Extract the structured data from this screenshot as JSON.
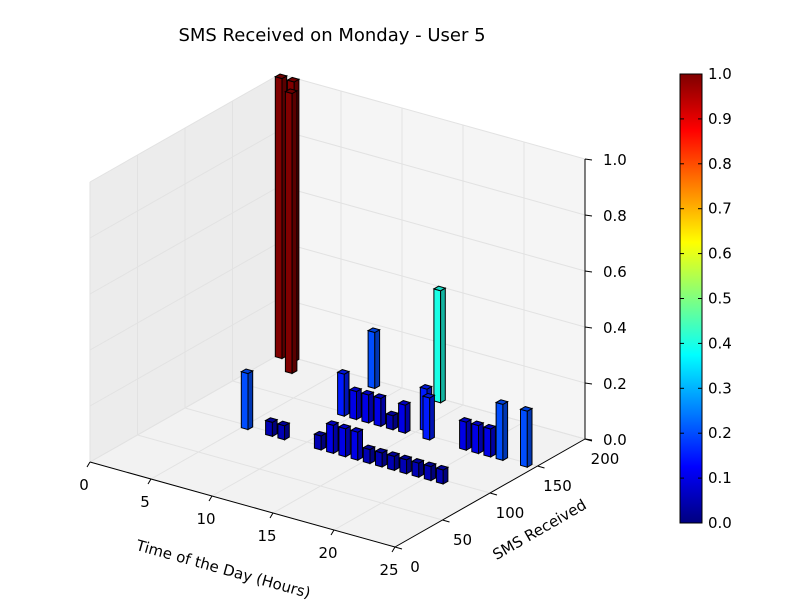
{
  "chart_data": {
    "type": "bar3d",
    "title": "SMS Received on Monday - User 5",
    "xlabel": "Time of the Day (Hours)",
    "ylabel": "SMS Received",
    "zlabel": "",
    "xlim": [
      0,
      25
    ],
    "ylim": [
      0,
      200
    ],
    "zlim": [
      0,
      1.0
    ],
    "xticks": [
      "0",
      "5",
      "10",
      "15",
      "20",
      "25"
    ],
    "yticks": [
      "0",
      "50",
      "100",
      "150",
      "200"
    ],
    "zticks": [
      "0.0",
      "0.2",
      "0.4",
      "0.6",
      "0.8",
      "1.0"
    ],
    "colormap": "jet",
    "colorbar": {
      "min": 0.0,
      "max": 1.0,
      "ticks": [
        "0.0",
        "0.1",
        "0.2",
        "0.3",
        "0.4",
        "0.5",
        "0.6",
        "0.7",
        "0.8",
        "0.9",
        "1.0"
      ]
    },
    "grid": true,
    "bars": [
      {
        "x": 0,
        "y": 200,
        "z": 1.0
      },
      {
        "x": 1,
        "y": 200,
        "z": 1.0
      },
      {
        "x": 2,
        "y": 185,
        "z": 1.0
      },
      {
        "x": 8,
        "y": 195,
        "z": 0.2
      },
      {
        "x": 13,
        "y": 200,
        "z": 0.4
      },
      {
        "x": 9,
        "y": 150,
        "z": 0.15
      },
      {
        "x": 10,
        "y": 150,
        "z": 0.1
      },
      {
        "x": 11,
        "y": 150,
        "z": 0.1
      },
      {
        "x": 12,
        "y": 150,
        "z": 0.1
      },
      {
        "x": 13,
        "y": 150,
        "z": 0.05
      },
      {
        "x": 14,
        "y": 150,
        "z": 0.1
      },
      {
        "x": 15,
        "y": 160,
        "z": 0.15
      },
      {
        "x": 16,
        "y": 150,
        "z": 0.15
      },
      {
        "x": 19,
        "y": 150,
        "z": 0.1
      },
      {
        "x": 20,
        "y": 150,
        "z": 0.1
      },
      {
        "x": 21,
        "y": 150,
        "z": 0.1
      },
      {
        "x": 22,
        "y": 150,
        "z": 0.2
      },
      {
        "x": 24,
        "y": 150,
        "z": 0.2
      },
      {
        "x": 5,
        "y": 100,
        "z": 0.2
      },
      {
        "x": 7,
        "y": 100,
        "z": 0.05
      },
      {
        "x": 8,
        "y": 100,
        "z": 0.05
      },
      {
        "x": 11,
        "y": 100,
        "z": 0.05
      },
      {
        "x": 12,
        "y": 100,
        "z": 0.1
      },
      {
        "x": 13,
        "y": 100,
        "z": 0.1
      },
      {
        "x": 14,
        "y": 100,
        "z": 0.1
      },
      {
        "x": 15,
        "y": 100,
        "z": 0.05
      },
      {
        "x": 16,
        "y": 100,
        "z": 0.05
      },
      {
        "x": 17,
        "y": 100,
        "z": 0.05
      },
      {
        "x": 18,
        "y": 100,
        "z": 0.05
      },
      {
        "x": 19,
        "y": 100,
        "z": 0.05
      },
      {
        "x": 20,
        "y": 100,
        "z": 0.05
      },
      {
        "x": 21,
        "y": 100,
        "z": 0.05
      }
    ]
  }
}
